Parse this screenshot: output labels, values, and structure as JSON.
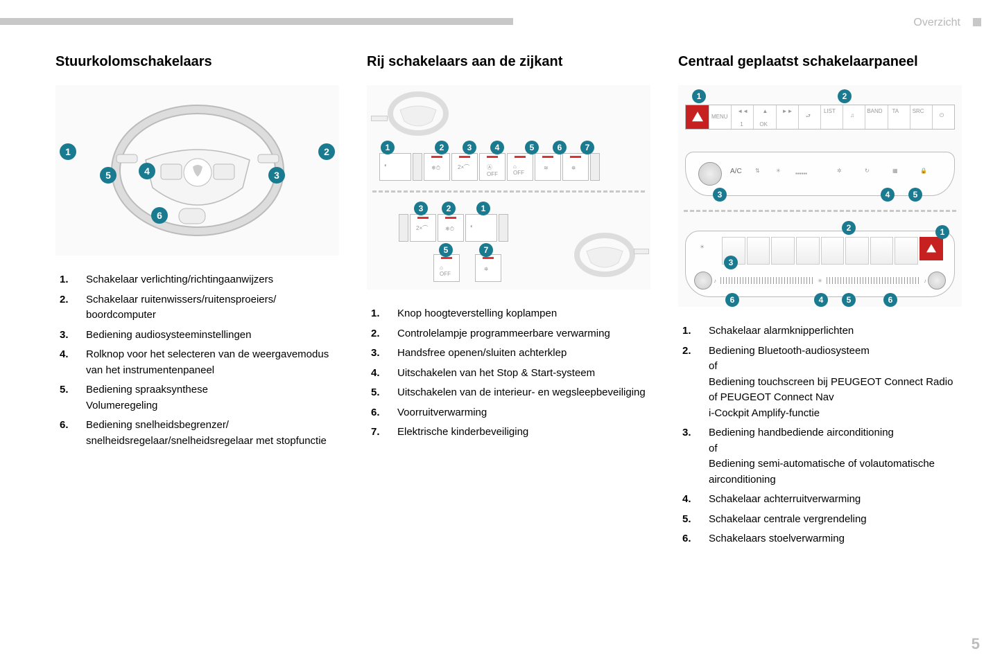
{
  "header": {
    "section": "Overzicht",
    "page": "5"
  },
  "colors": {
    "badge": "#1a7a8f",
    "hazard": "#c62020",
    "rule": "#c8c8c8",
    "line": "#bbbbbb"
  },
  "col1": {
    "title": "Stuurkolomschakelaars",
    "badges": [
      "1",
      "2",
      "3",
      "4",
      "5",
      "6"
    ],
    "items": [
      "Schakelaar verlichting/richtingaanwijzers",
      "Schakelaar ruitenwissers/ruitensproeiers/\nboordcomputer",
      "Bediening audiosysteeminstellingen",
      "Rolknop voor het selecteren van de weergavemodus van het instrumentenpaneel",
      "Bediening spraaksynthese\nVolumeregeling",
      "Bediening snelheidsbegrenzer/\nsnelheidsregelaar/snelheidsregelaar met stopfunctie"
    ]
  },
  "col2": {
    "title": "Rij schakelaars aan de zijkant",
    "row1_badges": [
      "1",
      "2",
      "3",
      "4",
      "5",
      "6",
      "7"
    ],
    "row2_badges": [
      "3",
      "2",
      "1"
    ],
    "row3_badges": [
      "5",
      "7"
    ],
    "items": [
      "Knop hoogteverstelling koplampen",
      "Controlelampje programmeerbare verwarming",
      "Handsfree openen/sluiten achterklep",
      "Uitschakelen van het Stop & Start-systeem",
      "Uitschakelen van de interieur- en wegsleepbeveiliging",
      "Voorruitverwarming",
      "Elektrische kinderbeveiliging"
    ]
  },
  "col3": {
    "title": "Centraal geplaatst schakelaarpaneel",
    "top_badges": [
      "1",
      "2"
    ],
    "mid_badges": [
      "3",
      "4",
      "5"
    ],
    "bot_top_badges": [
      "2",
      "1"
    ],
    "bot_mid_badges": [
      "3"
    ],
    "bot_low_badges": [
      "6",
      "4",
      "5",
      "6"
    ],
    "menu_labels": [
      "MENU",
      "",
      "",
      "",
      "",
      "OK",
      "",
      "LIST",
      "",
      "BAND",
      "TA",
      "SRC",
      ""
    ],
    "ac_label": "A/C",
    "items": [
      "Schakelaar alarmknipperlichten",
      "Bediening Bluetooth-audiosysteem\nof\nBediening touchscreen bij PEUGEOT Connect Radio of PEUGEOT Connect Nav\ni-Cockpit Amplify-functie",
      "Bediening handbediende airconditioning\nof\nBediening semi-automatische of volautomatische airconditioning",
      "Schakelaar achterruitverwarming",
      "Schakelaar centrale vergrendeling",
      "Schakelaars stoelverwarming"
    ]
  }
}
